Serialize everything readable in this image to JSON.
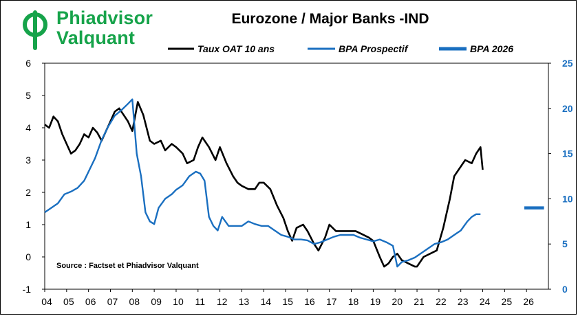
{
  "brand": {
    "line1": "Phiadvisor",
    "line2": "Valquant",
    "color": "#16a34a"
  },
  "chart_data": {
    "type": "line",
    "title": "Eurozone / Major Banks -IND",
    "source_note": "Source : Factset et Phiadvisor Valquant",
    "x_tick_labels": [
      "04",
      "05",
      "06",
      "07",
      "08",
      "09",
      "10",
      "11",
      "12",
      "13",
      "14",
      "15",
      "16",
      "17",
      "18",
      "19",
      "20",
      "21",
      "22",
      "23",
      "24",
      "25",
      "26"
    ],
    "x_range": [
      2004.0,
      2027.0
    ],
    "y_left": {
      "range": [
        -1,
        6
      ],
      "ticks": [
        6,
        5,
        4,
        3,
        2,
        1,
        0,
        -1
      ]
    },
    "y_right": {
      "range": [
        0,
        25
      ],
      "ticks": [
        25,
        20,
        15,
        10,
        5,
        0
      ],
      "color": "#1a6fc0"
    },
    "legend_placement": "top",
    "grid": false,
    "series": [
      {
        "name": "Taux OAT 10 ans",
        "axis": "left",
        "color": "#000000",
        "x": [
          2004.0,
          2004.2,
          2004.4,
          2004.6,
          2004.8,
          2005.0,
          2005.2,
          2005.4,
          2005.6,
          2005.8,
          2006.0,
          2006.2,
          2006.4,
          2006.6,
          2006.8,
          2007.0,
          2007.2,
          2007.4,
          2007.6,
          2007.8,
          2008.0,
          2008.25,
          2008.5,
          2008.8,
          2009.0,
          2009.3,
          2009.5,
          2009.8,
          2010.0,
          2010.3,
          2010.5,
          2010.8,
          2011.0,
          2011.2,
          2011.5,
          2011.8,
          2012.0,
          2012.3,
          2012.6,
          2012.8,
          2013.0,
          2013.3,
          2013.6,
          2013.8,
          2014.0,
          2014.3,
          2014.6,
          2014.9,
          2015.1,
          2015.3,
          2015.5,
          2015.8,
          2016.0,
          2016.3,
          2016.5,
          2016.8,
          2017.0,
          2017.3,
          2017.6,
          2017.9,
          2018.2,
          2018.5,
          2018.8,
          2019.0,
          2019.3,
          2019.5,
          2019.7,
          2019.9,
          2020.1,
          2020.3,
          2020.6,
          2020.9,
          2021.0,
          2021.3,
          2021.6,
          2021.9,
          2022.2,
          2022.5,
          2022.7,
          2023.0,
          2023.2,
          2023.5,
          2023.7,
          2023.9,
          2024.0
        ],
        "y": [
          4.1,
          4.0,
          4.35,
          4.2,
          3.8,
          3.5,
          3.2,
          3.3,
          3.5,
          3.8,
          3.7,
          4.0,
          3.85,
          3.6,
          3.9,
          4.2,
          4.5,
          4.6,
          4.4,
          4.2,
          3.9,
          4.8,
          4.4,
          3.6,
          3.5,
          3.6,
          3.3,
          3.5,
          3.4,
          3.2,
          2.9,
          3.0,
          3.4,
          3.7,
          3.4,
          3.0,
          3.4,
          2.9,
          2.5,
          2.3,
          2.2,
          2.1,
          2.1,
          2.3,
          2.3,
          2.1,
          1.6,
          1.2,
          0.8,
          0.5,
          0.9,
          1.0,
          0.8,
          0.4,
          0.2,
          0.6,
          1.0,
          0.8,
          0.8,
          0.8,
          0.8,
          0.7,
          0.6,
          0.5,
          0.0,
          -0.3,
          -0.2,
          0.0,
          0.1,
          -0.1,
          -0.2,
          -0.3,
          -0.3,
          0.0,
          0.1,
          0.2,
          0.9,
          1.8,
          2.5,
          2.8,
          3.0,
          2.9,
          3.2,
          3.4,
          2.7
        ]
      },
      {
        "name": "BPA Prospectif",
        "axis": "right",
        "color": "#1a6fc0",
        "x": [
          2004.0,
          2004.3,
          2004.6,
          2004.9,
          2005.2,
          2005.5,
          2005.8,
          2006.0,
          2006.3,
          2006.6,
          2006.9,
          2007.2,
          2007.5,
          2007.8,
          2008.0,
          2008.2,
          2008.4,
          2008.6,
          2008.8,
          2009.0,
          2009.2,
          2009.5,
          2009.8,
          2010.0,
          2010.3,
          2010.6,
          2010.9,
          2011.1,
          2011.3,
          2011.5,
          2011.7,
          2011.9,
          2012.1,
          2012.4,
          2012.7,
          2013.0,
          2013.3,
          2013.6,
          2013.9,
          2014.2,
          2014.5,
          2014.8,
          2015.1,
          2015.4,
          2015.7,
          2016.0,
          2016.3,
          2016.6,
          2016.9,
          2017.2,
          2017.5,
          2017.8,
          2018.1,
          2018.4,
          2018.7,
          2019.0,
          2019.3,
          2019.6,
          2019.9,
          2020.1,
          2020.3,
          2020.6,
          2020.9,
          2021.2,
          2021.5,
          2021.8,
          2022.1,
          2022.4,
          2022.7,
          2023.0,
          2023.3,
          2023.5,
          2023.7,
          2023.9
        ],
        "y": [
          8.5,
          9.0,
          9.5,
          10.5,
          10.8,
          11.2,
          12.0,
          13.0,
          14.5,
          16.5,
          18.0,
          19.2,
          19.8,
          20.5,
          21.0,
          15.0,
          12.5,
          8.5,
          7.5,
          7.2,
          9.0,
          10.0,
          10.5,
          11.0,
          11.5,
          12.5,
          13.0,
          12.8,
          12.0,
          8.0,
          7.0,
          6.5,
          8.0,
          7.0,
          7.0,
          7.0,
          7.5,
          7.2,
          7.0,
          7.0,
          6.5,
          6.0,
          5.8,
          5.5,
          5.5,
          5.4,
          5.0,
          5.2,
          5.5,
          5.8,
          6.0,
          6.0,
          6.0,
          5.7,
          5.5,
          5.3,
          5.5,
          5.2,
          4.8,
          2.5,
          3.0,
          3.2,
          3.5,
          4.0,
          4.5,
          5.0,
          5.2,
          5.5,
          6.0,
          6.5,
          7.5,
          8.0,
          8.3,
          8.3
        ]
      },
      {
        "name": "BPA 2026",
        "axis": "right",
        "color": "#1a6fc0",
        "x": [
          2025.9,
          2026.8
        ],
        "y": [
          9.0,
          9.0
        ]
      }
    ]
  }
}
